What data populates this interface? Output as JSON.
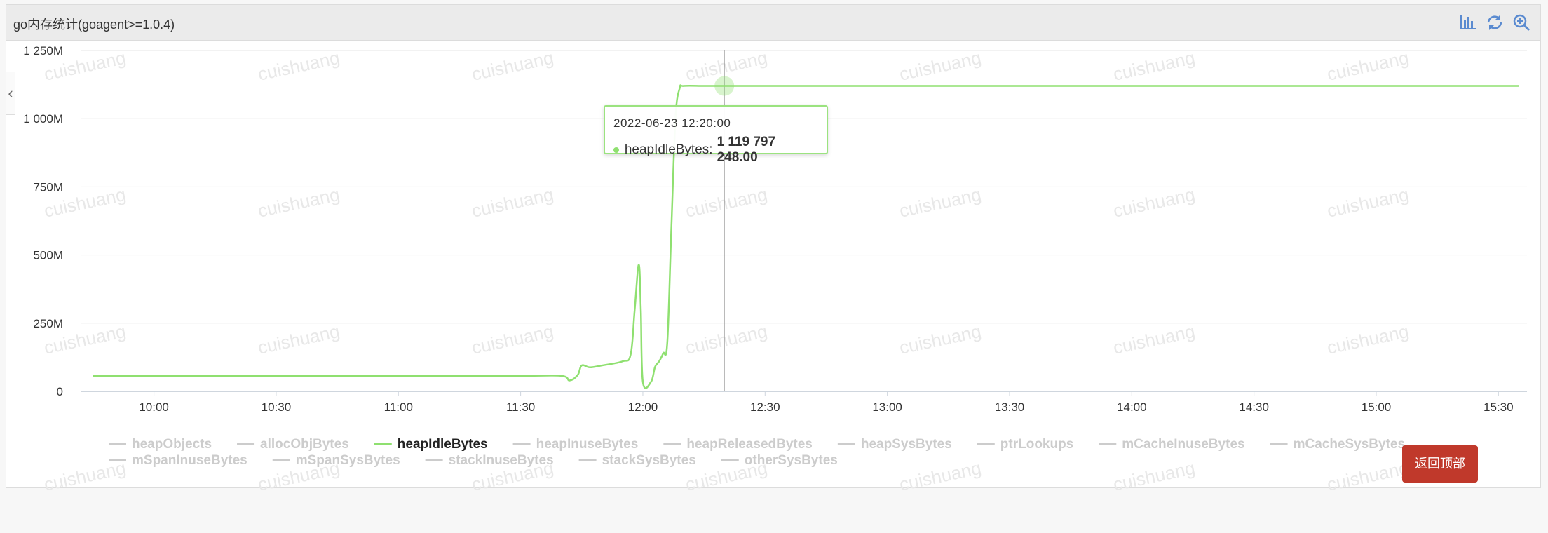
{
  "panel": {
    "title": "go内存统计(goagent>=1.0.4)",
    "tools": [
      "bar-chart-icon",
      "refresh-icon",
      "zoom-in-icon"
    ]
  },
  "watermark": "cuishuang",
  "tooltip": {
    "date": "2022-06-23 12:20:00",
    "series": "heapIdleBytes",
    "value": "1 119 797 248.00"
  },
  "back_to_top_label": "返回顶部",
  "colors": {
    "series_line": "#8fe070",
    "legend_inactive": "#cccccc",
    "legend_active": "#222222",
    "back_button": "#c0392b"
  },
  "chart_data": {
    "type": "line",
    "ylim": [
      0,
      1250
    ],
    "yticks": [
      {
        "value": 0,
        "label": "0"
      },
      {
        "value": 250,
        "label": "250M"
      },
      {
        "value": 500,
        "label": "500M"
      },
      {
        "value": 750,
        "label": "750M"
      },
      {
        "value": 1000,
        "label": "1 000M"
      },
      {
        "value": 1250,
        "label": "1 250M"
      }
    ],
    "xlim": [
      "09:42",
      "15:37"
    ],
    "xticks": [
      "10:00",
      "10:30",
      "11:00",
      "11:30",
      "12:00",
      "12:30",
      "13:00",
      "13:30",
      "14:00",
      "14:30",
      "15:00",
      "15:30"
    ],
    "grid": true,
    "legend": {
      "placement": "bottom",
      "selected": "heapIdleBytes",
      "items": [
        "heapObjects",
        "allocObjBytes",
        "heapIdleBytes",
        "heapInuseBytes",
        "heapReleasedBytes",
        "heapSysBytes",
        "ptrLookups",
        "mCacheInuseBytes",
        "mCacheSysBytes",
        "mSpanInuseBytes",
        "mSpanSysBytes",
        "stackInuseBytes",
        "stackSysBytes",
        "otherSysBytes"
      ]
    },
    "series": [
      {
        "name": "heapIdleBytes",
        "unit": "M",
        "x": [
          "09:45",
          "10:00",
          "10:30",
          "11:00",
          "11:30",
          "11:40",
          "11:42",
          "11:44",
          "11:45",
          "11:47",
          "11:50",
          "11:55",
          "11:57",
          "11:58",
          "11:59",
          "11:59:30",
          "12:00",
          "12:02",
          "12:03",
          "12:04",
          "12:05",
          "12:06",
          "12:07",
          "12:08",
          "12:09",
          "12:10",
          "12:15",
          "12:20",
          "13:00",
          "13:30",
          "14:00",
          "14:30",
          "15:00",
          "15:30",
          "15:35"
        ],
        "values": [
          57,
          57,
          57,
          57,
          57,
          57,
          40,
          60,
          95,
          88,
          95,
          110,
          135,
          300,
          465,
          300,
          35,
          35,
          90,
          110,
          140,
          180,
          600,
          1000,
          1110,
          1120,
          1120,
          1120,
          1120,
          1120,
          1120,
          1120,
          1120,
          1120,
          1120
        ]
      }
    ],
    "cursor_x": "12:20"
  }
}
